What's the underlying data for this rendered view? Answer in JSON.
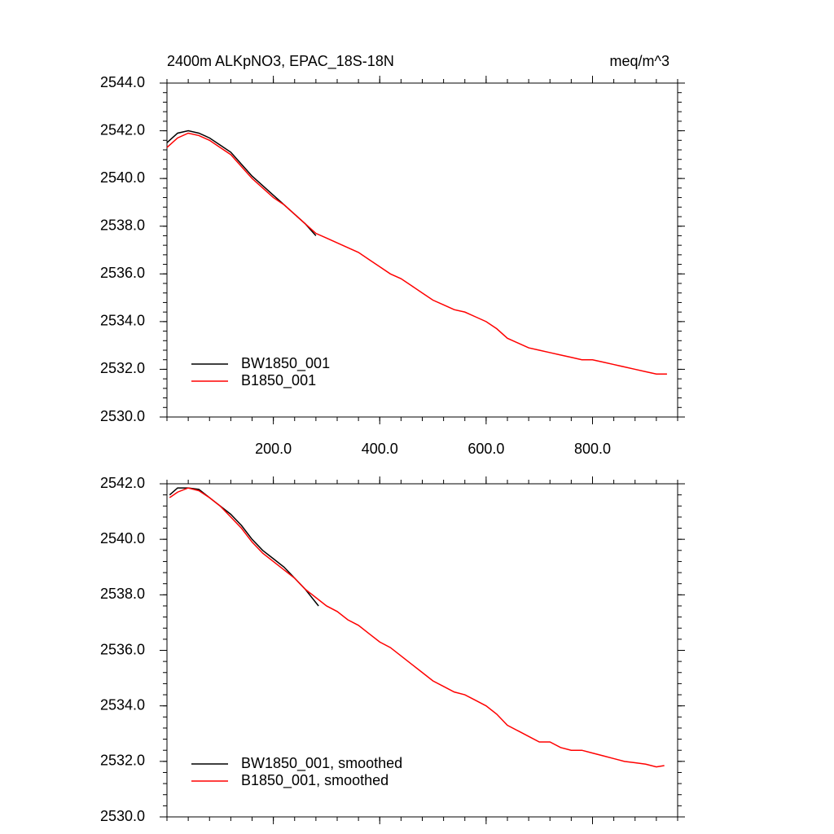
{
  "chart_data": [
    {
      "type": "line",
      "title": "2400m ALKpNO3, EPAC_18S-18N",
      "units_label": "meq/m^3",
      "xlim": [
        0,
        960
      ],
      "ylim": [
        2530,
        2544
      ],
      "xticks": [
        {
          "value": 200,
          "label": "200.0"
        },
        {
          "value": 400,
          "label": "400.0"
        },
        {
          "value": 600,
          "label": "600.0"
        },
        {
          "value": 800,
          "label": "800.0"
        }
      ],
      "yticks": [
        {
          "value": 2530,
          "label": "2530.0"
        },
        {
          "value": 2532,
          "label": "2532.0"
        },
        {
          "value": 2534,
          "label": "2534.0"
        },
        {
          "value": 2536,
          "label": "2536.0"
        },
        {
          "value": 2538,
          "label": "2538.0"
        },
        {
          "value": 2540,
          "label": "2540.0"
        },
        {
          "value": 2542,
          "label": "2542.0"
        },
        {
          "value": 2544,
          "label": "2544.0"
        }
      ],
      "xtick_labels": true,
      "legend": "lower left",
      "series": [
        {
          "name": "BW1850_001",
          "color": "#000000",
          "x": [
            0,
            20,
            40,
            60,
            80,
            100,
            120,
            140,
            160,
            180,
            200,
            220,
            240,
            260,
            280
          ],
          "values": [
            2541.5,
            2541.9,
            2542.0,
            2541.9,
            2541.7,
            2541.4,
            2541.1,
            2540.6,
            2540.1,
            2539.7,
            2539.3,
            2538.9,
            2538.5,
            2538.1,
            2537.6
          ]
        },
        {
          "name": "B1850_001",
          "color": "#ff0000",
          "x": [
            0,
            20,
            40,
            60,
            80,
            100,
            120,
            140,
            160,
            180,
            200,
            220,
            240,
            260,
            280,
            300,
            320,
            340,
            360,
            380,
            400,
            420,
            440,
            460,
            480,
            500,
            520,
            540,
            560,
            580,
            600,
            620,
            640,
            660,
            680,
            700,
            720,
            740,
            760,
            780,
            800,
            820,
            840,
            860,
            880,
            900,
            920,
            940
          ],
          "values": [
            2541.3,
            2541.7,
            2541.9,
            2541.8,
            2541.6,
            2541.3,
            2541.0,
            2540.5,
            2540.0,
            2539.6,
            2539.2,
            2538.9,
            2538.5,
            2538.1,
            2537.7,
            2537.5,
            2537.3,
            2537.1,
            2536.9,
            2536.6,
            2536.3,
            2536.0,
            2535.8,
            2535.5,
            2535.2,
            2534.9,
            2534.7,
            2534.5,
            2534.4,
            2534.2,
            2534.0,
            2533.7,
            2533.3,
            2533.1,
            2532.9,
            2532.8,
            2532.7,
            2532.6,
            2532.5,
            2532.4,
            2532.4,
            2532.3,
            2532.2,
            2532.1,
            2532.0,
            2531.9,
            2531.8,
            2531.8
          ]
        }
      ]
    },
    {
      "type": "line",
      "xlim": [
        0,
        960
      ],
      "ylim": [
        2530,
        2542
      ],
      "xticks": [
        200,
        400,
        600,
        800
      ],
      "yticks": [
        {
          "value": 2530,
          "label": "2530.0"
        },
        {
          "value": 2532,
          "label": "2532.0"
        },
        {
          "value": 2534,
          "label": "2534.0"
        },
        {
          "value": 2536,
          "label": "2536.0"
        },
        {
          "value": 2538,
          "label": "2538.0"
        },
        {
          "value": 2540,
          "label": "2540.0"
        },
        {
          "value": 2542,
          "label": "2542.0"
        }
      ],
      "xtick_labels": false,
      "legend": "lower left",
      "series": [
        {
          "name": "BW1850_001, smoothed",
          "color": "#000000",
          "x": [
            5,
            20,
            40,
            60,
            80,
            100,
            120,
            140,
            160,
            180,
            200,
            220,
            240,
            260,
            285
          ],
          "values": [
            2541.6,
            2541.85,
            2541.85,
            2541.8,
            2541.5,
            2541.2,
            2540.9,
            2540.5,
            2540.0,
            2539.6,
            2539.3,
            2539.0,
            2538.6,
            2538.2,
            2537.6
          ]
        },
        {
          "name": "B1850_001, smoothed",
          "color": "#ff0000",
          "x": [
            5,
            20,
            40,
            60,
            80,
            100,
            120,
            140,
            160,
            180,
            200,
            220,
            240,
            260,
            280,
            300,
            320,
            340,
            360,
            380,
            400,
            420,
            440,
            460,
            480,
            500,
            520,
            540,
            560,
            580,
            600,
            620,
            640,
            660,
            680,
            700,
            720,
            740,
            760,
            780,
            800,
            820,
            840,
            860,
            880,
            900,
            920,
            935
          ],
          "values": [
            2541.5,
            2541.7,
            2541.85,
            2541.75,
            2541.5,
            2541.2,
            2540.8,
            2540.4,
            2539.9,
            2539.5,
            2539.2,
            2538.9,
            2538.6,
            2538.2,
            2537.9,
            2537.6,
            2537.4,
            2537.1,
            2536.9,
            2536.6,
            2536.3,
            2536.1,
            2535.8,
            2535.5,
            2535.2,
            2534.9,
            2534.7,
            2534.5,
            2534.4,
            2534.2,
            2534.0,
            2533.7,
            2533.3,
            2533.1,
            2532.9,
            2532.7,
            2532.7,
            2532.5,
            2532.4,
            2532.4,
            2532.3,
            2532.2,
            2532.1,
            2532.0,
            2531.95,
            2531.9,
            2531.8,
            2531.85
          ]
        }
      ]
    }
  ]
}
